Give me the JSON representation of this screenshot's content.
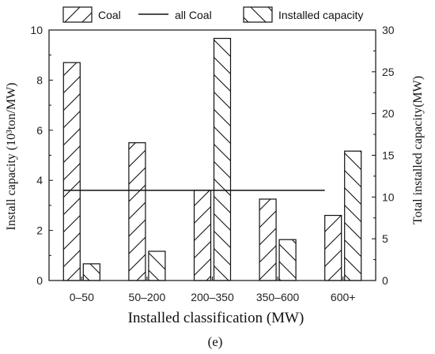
{
  "chart_data": {
    "type": "bar",
    "categories": [
      "0–50",
      "50–200",
      "200–350",
      "350–600",
      "600+"
    ],
    "series": [
      {
        "name": "Coal",
        "axis": "left",
        "hatch": "forward",
        "values": [
          8.7,
          5.5,
          3.6,
          3.25,
          2.6
        ]
      },
      {
        "name": "Installed capacity",
        "axis": "right",
        "hatch": "backward",
        "values": [
          2.0,
          3.5,
          29.0,
          4.9,
          15.5
        ]
      }
    ],
    "reference_line": {
      "name": "all Coal",
      "axis": "left",
      "value": 3.6
    },
    "xlabel": "Installed classification (MW)",
    "ylabel": "Install capacity (10³ton/MW)",
    "ylabel_right": "Total installed capacity(MW)",
    "ylim": [
      0,
      10
    ],
    "ylim_right": [
      0,
      30
    ],
    "yticks": [
      "0",
      "2",
      "4",
      "6",
      "8",
      "10"
    ],
    "yticks_right": [
      "0",
      "5",
      "10",
      "15",
      "20",
      "25",
      "30"
    ],
    "caption": "(e)",
    "legend_placement": "top",
    "grid": false,
    "colors": {
      "stroke": "#111111",
      "background": "#ffffff"
    }
  }
}
